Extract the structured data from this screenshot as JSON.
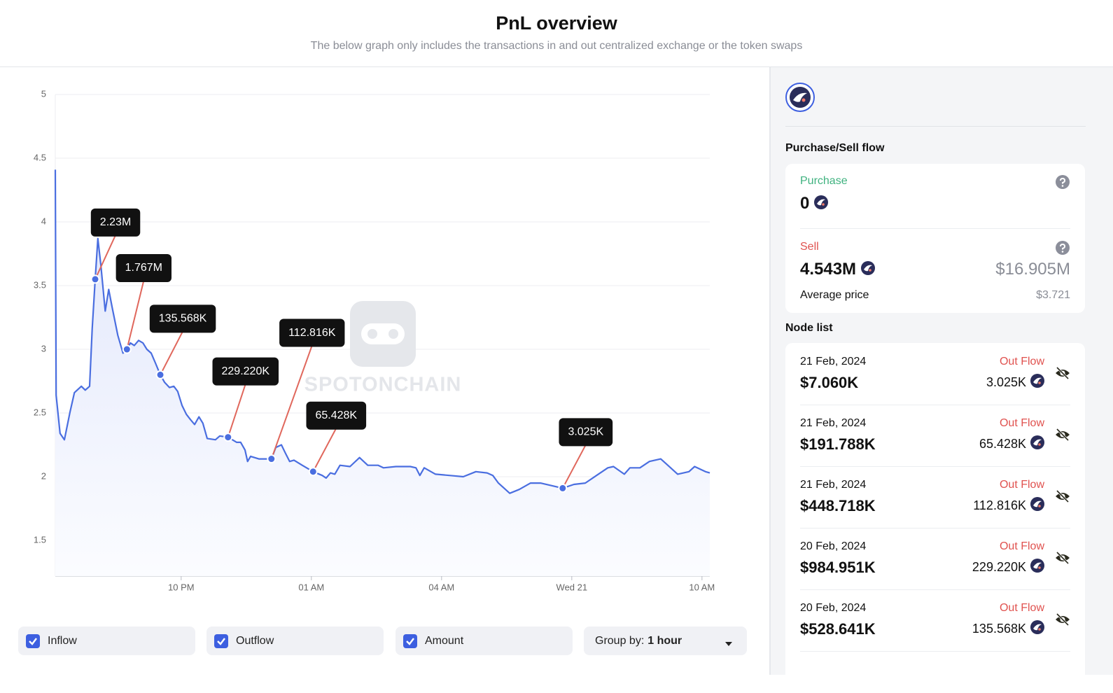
{
  "header": {
    "title": "PnL overview",
    "subtitle": "The below graph only includes the transactions in and out centralized exchange or the token swaps"
  },
  "chart_data": {
    "type": "line",
    "watermark": "SPOTONCHAIN",
    "color": "#4a6ee0",
    "grid": true,
    "x": [
      19.1,
      19.12,
      19.21,
      19.31,
      19.44,
      19.54,
      19.7,
      19.79,
      19.89,
      19.95,
      20.02,
      20.08,
      20.15,
      20.25,
      20.33,
      20.41,
      20.54,
      20.66,
      20.75,
      20.83,
      20.92,
      21.02,
      21.12,
      21.21,
      21.31,
      21.41,
      21.52,
      21.62,
      21.73,
      21.83,
      21.92,
      22.02,
      22.12,
      22.21,
      22.31,
      22.41,
      22.5,
      22.6,
      22.79,
      22.89,
      23.08,
      23.28,
      23.37,
      23.47,
      23.53,
      23.6,
      23.79,
      24.08,
      24.18,
      24.31,
      24.41,
      24.5,
      24.6,
      24.79,
      25.04,
      25.25,
      25.34,
      25.44,
      25.54,
      25.66,
      25.89,
      26.11,
      26.3,
      26.54,
      26.66,
      26.95,
      27.28,
      27.41,
      27.5,
      27.6,
      27.86,
      28.18,
      28.5,
      28.79,
      29.05,
      29.18,
      29.31,
      29.57,
      29.79,
      30.05,
      30.28,
      30.54,
      30.79,
      31.05,
      31.31,
      31.57,
      31.83,
      31.96,
      32.21,
      32.34,
      32.57,
      32.79,
      33.05,
      33.18,
      33.44,
      33.7,
      33.83,
      34.08,
      34.18
    ],
    "values": [
      4.41,
      2.64,
      2.34,
      2.29,
      2.51,
      2.66,
      2.71,
      2.68,
      2.71,
      3.16,
      3.55,
      3.87,
      3.66,
      3.3,
      3.47,
      3.33,
      3.11,
      2.97,
      3.0,
      3.05,
      3.03,
      3.07,
      3.05,
      3.0,
      2.97,
      2.89,
      2.8,
      2.74,
      2.7,
      2.71,
      2.67,
      2.56,
      2.49,
      2.45,
      2.41,
      2.47,
      2.42,
      2.3,
      2.29,
      2.32,
      2.31,
      2.27,
      2.27,
      2.21,
      2.12,
      2.16,
      2.14,
      2.14,
      2.23,
      2.25,
      2.18,
      2.12,
      2.13,
      2.09,
      2.04,
      2.01,
      1.99,
      2.03,
      2.02,
      2.09,
      2.08,
      2.15,
      2.09,
      2.09,
      2.07,
      2.08,
      2.08,
      2.07,
      2.01,
      2.07,
      2.02,
      2.01,
      2.0,
      2.04,
      2.03,
      2.01,
      1.95,
      1.87,
      1.9,
      1.95,
      1.95,
      1.93,
      1.91,
      1.94,
      1.95,
      2.01,
      2.07,
      2.08,
      2.02,
      2.07,
      2.07,
      2.12,
      2.14,
      2.1,
      2.02,
      2.04,
      2.08,
      2.04,
      2.03
    ],
    "xlim": [
      19.1,
      34.18
    ],
    "xticks": [
      {
        "value": 22,
        "label": "10 PM"
      },
      {
        "value": 25,
        "label": "01 AM"
      },
      {
        "value": 28,
        "label": "04 AM"
      },
      {
        "value": 31,
        "label": "Wed 21"
      },
      {
        "value": 34,
        "label": "10 AM"
      }
    ],
    "ylim": [
      1.22,
      5
    ],
    "yticks": [
      1.5,
      2,
      2.5,
      3,
      3.5,
      4,
      4.5,
      5
    ],
    "annotations": [
      {
        "x": 20.02,
        "y": 3.55,
        "label": "2.23M"
      },
      {
        "x": 20.75,
        "y": 3.0,
        "label": "1.767M"
      },
      {
        "x": 21.52,
        "y": 2.8,
        "label": "135.568K"
      },
      {
        "x": 23.08,
        "y": 2.31,
        "label": "229.220K"
      },
      {
        "x": 24.08,
        "y": 2.14,
        "label": "112.816K"
      },
      {
        "x": 25.04,
        "y": 2.04,
        "label": "65.428K"
      },
      {
        "x": 30.79,
        "y": 1.91,
        "label": "3.025K"
      }
    ]
  },
  "controls": {
    "checkboxes": [
      "Inflow",
      "Outflow",
      "Amount"
    ],
    "group_by": {
      "label": "Group by:",
      "value": "1 hour"
    }
  },
  "sidebar": {
    "flow_title": "Purchase/Sell flow",
    "purchase": {
      "label": "Purchase",
      "amount": "0"
    },
    "sell": {
      "label": "Sell",
      "amount": "4.543M",
      "usd": "$16.905M",
      "avg_label": "Average price",
      "avg": "$3.721"
    },
    "node_title": "Node list",
    "nodes": [
      {
        "date": "21 Feb, 2024",
        "usd": "$7.060K",
        "direction": "Out Flow",
        "amount": "3.025K"
      },
      {
        "date": "21 Feb, 2024",
        "usd": "$191.788K",
        "direction": "Out Flow",
        "amount": "65.428K"
      },
      {
        "date": "21 Feb, 2024",
        "usd": "$448.718K",
        "direction": "Out Flow",
        "amount": "112.816K"
      },
      {
        "date": "20 Feb, 2024",
        "usd": "$984.951K",
        "direction": "Out Flow",
        "amount": "229.220K"
      },
      {
        "date": "20 Feb, 2024",
        "usd": "$528.641K",
        "direction": "Out Flow",
        "amount": "135.568K"
      }
    ]
  }
}
